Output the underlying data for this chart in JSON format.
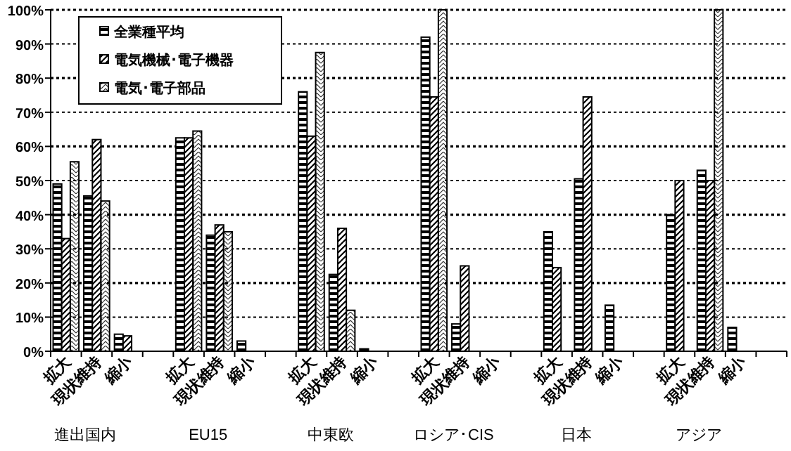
{
  "chart_data": {
    "type": "bar",
    "categories": [
      "拡大",
      "現状維持",
      "縮小",
      null,
      "拡大",
      "現状維持",
      "縮小",
      null,
      "拡大",
      "現状維持",
      "縮小",
      null,
      "拡大",
      "現状維持",
      "縮小",
      null,
      "拡大",
      "現状維持",
      "縮小",
      null,
      "拡大",
      "現状維持",
      "縮小",
      null
    ],
    "series": [
      {
        "name": "全業種平均",
        "color": "#000000",
        "values": [
          49,
          45.5,
          5,
          null,
          62.5,
          34,
          3,
          null,
          76,
          22.5,
          0.7,
          null,
          92,
          8,
          0,
          null,
          35,
          50.5,
          13.5,
          null,
          40,
          53,
          7,
          null
        ]
      },
      {
        "name": "電気機械･電子機器",
        "color": "#000000",
        "values": [
          33,
          62,
          4.5,
          null,
          62.5,
          37,
          0,
          null,
          63,
          36,
          0,
          null,
          74.5,
          25,
          0,
          null,
          24.5,
          74.5,
          0,
          null,
          50,
          50,
          0,
          null
        ]
      },
      {
        "name": "電気･電子部品",
        "color": "#000000",
        "values": [
          55.5,
          44,
          0,
          null,
          64.5,
          35,
          0,
          null,
          87.5,
          12,
          0,
          null,
          100,
          0,
          0,
          null,
          0,
          0,
          0,
          null,
          0,
          100,
          0,
          null
        ]
      }
    ],
    "annotations": [
      "進出国内",
      "EU15",
      "中東欧",
      "ロシア･CIS",
      "日本",
      "アジア"
    ],
    "ylim": [
      0,
      100
    ],
    "yticks": [
      {
        "value": 0,
        "label": "0%"
      },
      {
        "value": 10,
        "label": "10%"
      },
      {
        "value": 20,
        "label": "20%"
      },
      {
        "value": 30,
        "label": "30%"
      },
      {
        "value": 40,
        "label": "40%"
      },
      {
        "value": 50,
        "label": "50%"
      },
      {
        "value": 60,
        "label": "60%"
      },
      {
        "value": 70,
        "label": "70%"
      },
      {
        "value": 80,
        "label": "80%"
      },
      {
        "value": 90,
        "label": "90%"
      },
      {
        "value": 100,
        "label": "100%"
      }
    ],
    "grid": "y",
    "legend": "top left"
  }
}
